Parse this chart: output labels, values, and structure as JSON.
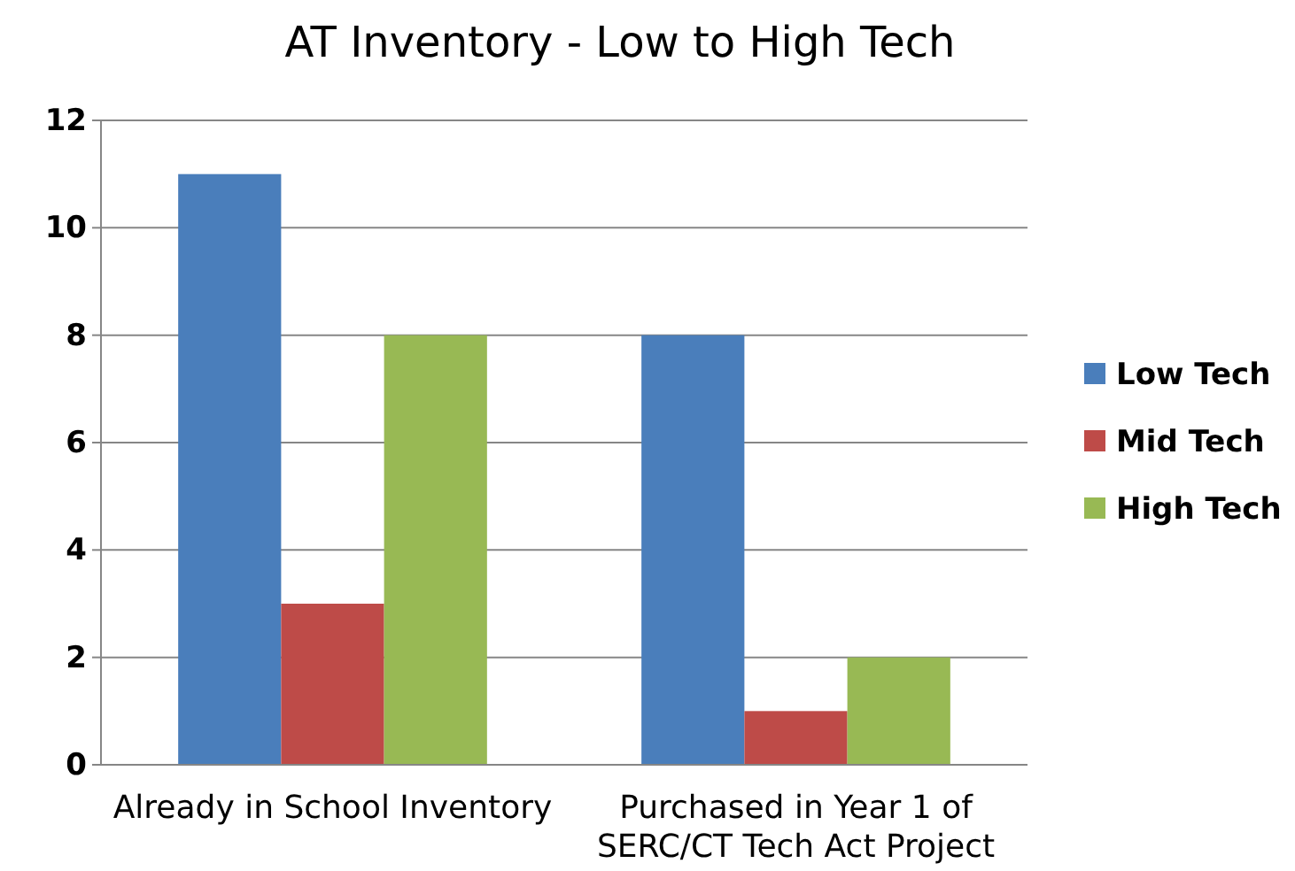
{
  "chart_data": {
    "type": "bar",
    "title": "AT Inventory - Low to High Tech",
    "categories": [
      "Already in School Inventory",
      "Purchased in Year 1 of SERC/CT Tech Act Project"
    ],
    "series": [
      {
        "name": "Low Tech",
        "color": "#4a7ebb",
        "values": [
          11,
          8
        ]
      },
      {
        "name": "Mid Tech",
        "color": "#be4b48",
        "values": [
          3,
          1
        ]
      },
      {
        "name": "High Tech",
        "color": "#98b954",
        "values": [
          8,
          2
        ]
      }
    ],
    "ylim": [
      0,
      12
    ],
    "yticks": [
      0,
      2,
      4,
      6,
      8,
      10,
      12
    ],
    "grid": "y",
    "legend": "right"
  }
}
